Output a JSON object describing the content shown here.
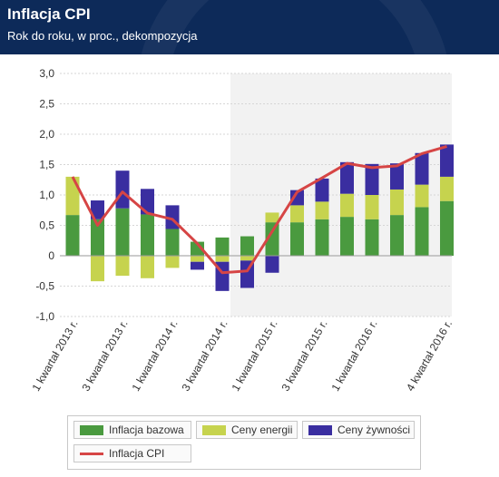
{
  "header": {
    "title": "Inflacja CPI",
    "subtitle": "Rok do roku, w proc., dekompozycja"
  },
  "chart_data": {
    "type": "bar",
    "stacked": true,
    "categories": [
      "1 kwartał 2013 r.",
      "",
      "3 kwartał 2013 r.",
      "",
      "1 kwartał 2014 r.",
      "",
      "3 kwartał 2014 r.",
      "",
      "1 kwartał 2015 r.",
      "",
      "3 kwartał 2015 r.",
      "",
      "1 kwartał 2016 r.",
      "",
      "",
      "4 kwartał 2016 r."
    ],
    "tick_labels_y": [
      "3,0",
      "2,5",
      "2,0",
      "1,5",
      "1,0",
      "0,5",
      "0",
      "-0,5",
      "-1,0"
    ],
    "ylim": [
      -1.0,
      3.0
    ],
    "grid": true,
    "legend_position": "bottom",
    "series": [
      {
        "name": "Inflacja bazowa",
        "type": "bar",
        "color": "#4a9a3f",
        "values": [
          0.67,
          0.6,
          0.78,
          0.68,
          0.44,
          0.23,
          0.3,
          0.32,
          0.55,
          0.55,
          0.6,
          0.64,
          0.6,
          0.67,
          0.8,
          0.9
        ]
      },
      {
        "name": "Ceny energii",
        "type": "bar",
        "color": "#c6d34e",
        "values": [
          0.63,
          -0.42,
          -0.33,
          -0.37,
          -0.2,
          -0.1,
          -0.1,
          -0.08,
          0.16,
          0.28,
          0.29,
          0.38,
          0.4,
          0.42,
          0.37,
          0.4
        ]
      },
      {
        "name": "Ceny żywności",
        "type": "bar",
        "color": "#3a2ea0",
        "values": [
          0.0,
          0.31,
          0.62,
          0.42,
          0.39,
          -0.13,
          -0.48,
          -0.45,
          -0.28,
          0.25,
          0.38,
          0.52,
          0.51,
          0.43,
          0.52,
          0.53
        ]
      },
      {
        "name": "Inflacja CPI",
        "type": "line",
        "color": "#d64545",
        "values": [
          1.3,
          0.5,
          1.05,
          0.7,
          0.6,
          0.2,
          -0.28,
          -0.25,
          0.4,
          1.05,
          1.28,
          1.52,
          1.45,
          1.48,
          1.68,
          1.8
        ]
      }
    ]
  },
  "legend": {
    "bazowa": "Inflacja bazowa",
    "energia": "Ceny energii",
    "zywnosc": "Ceny żywności",
    "cpi": "Inflacja CPI"
  }
}
